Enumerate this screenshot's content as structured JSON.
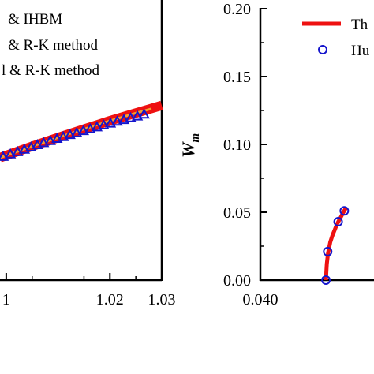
{
  "chart_data": [
    {
      "type": "line",
      "x_ticks": [
        "1",
        "1.02",
        "1.03"
      ],
      "xlim": [
        0.9988,
        1.03
      ],
      "ylim": [
        0.065,
        0.2
      ],
      "legend_entries": [
        "& IHBM",
        "& R-K method",
        "l & R-K method"
      ],
      "series": [
        {
          "name": "& IHBM",
          "style": "thick-line",
          "color": "#ee1111",
          "x": [
            0.9988,
            1.005,
            1.01,
            1.015,
            1.02,
            1.025,
            1.03
          ],
          "y": [
            0.124,
            0.1295,
            0.1337,
            0.1378,
            0.1418,
            0.1455,
            0.1492
          ]
        },
        {
          "name": "& R-K method",
          "style": "thin-line",
          "color": "#f0a030",
          "x": [
            0.9988,
            1.005,
            1.01,
            1.015,
            1.02,
            1.025,
            1.028
          ],
          "y": [
            0.124,
            0.1295,
            0.1337,
            0.1378,
            0.1418,
            0.1455,
            0.1476
          ]
        },
        {
          "name": "l & R-K method",
          "style": "triangle-markers",
          "color": "#1515cc",
          "x": [
            0.9994,
            1.0008,
            1.0022,
            1.0035,
            1.0048,
            1.006,
            1.0072,
            1.0085,
            1.0098,
            1.011,
            1.0123,
            1.0136,
            1.0149,
            1.0162,
            1.0175,
            1.0188,
            1.0201,
            1.0214,
            1.0227,
            1.024,
            1.0253,
            1.0266
          ],
          "y": [
            0.1245,
            0.1257,
            0.1268,
            0.128,
            0.1291,
            0.1302,
            0.1312,
            0.1322,
            0.1332,
            0.1341,
            0.1351,
            0.136,
            0.137,
            0.1379,
            0.1388,
            0.1397,
            0.1406,
            0.1415,
            0.1423,
            0.1432,
            0.144,
            0.1449
          ]
        }
      ]
    },
    {
      "type": "line",
      "ylabel_main": "W",
      "ylabel_sub": "m",
      "y_ticks": [
        "0.00",
        "0.05",
        "0.10",
        "0.15",
        "0.20"
      ],
      "x_ticks": [
        "0.040"
      ],
      "xlim": [
        0.04,
        0.0426
      ],
      "ylim": [
        0,
        0.2
      ],
      "legend_entries": [
        "Th",
        "Hu"
      ],
      "series": [
        {
          "name": "Th",
          "style": "thick-line",
          "color": "#ee1111",
          "x": [
            0.0415,
            0.04151,
            0.04152,
            0.04155,
            0.0416,
            0.04165,
            0.0417,
            0.04175,
            0.0418,
            0.04185,
            0.0419,
            0.041955
          ],
          "y": [
            0.0,
            0.006,
            0.012,
            0.02,
            0.028,
            0.033,
            0.037,
            0.041,
            0.044,
            0.047,
            0.05,
            0.053
          ]
        },
        {
          "name": "Hu",
          "style": "circle-markers",
          "color": "#1515cc",
          "x": [
            0.0415,
            0.04154,
            0.04178,
            0.04192
          ],
          "y": [
            0.0,
            0.021,
            0.043,
            0.051
          ]
        }
      ]
    }
  ]
}
